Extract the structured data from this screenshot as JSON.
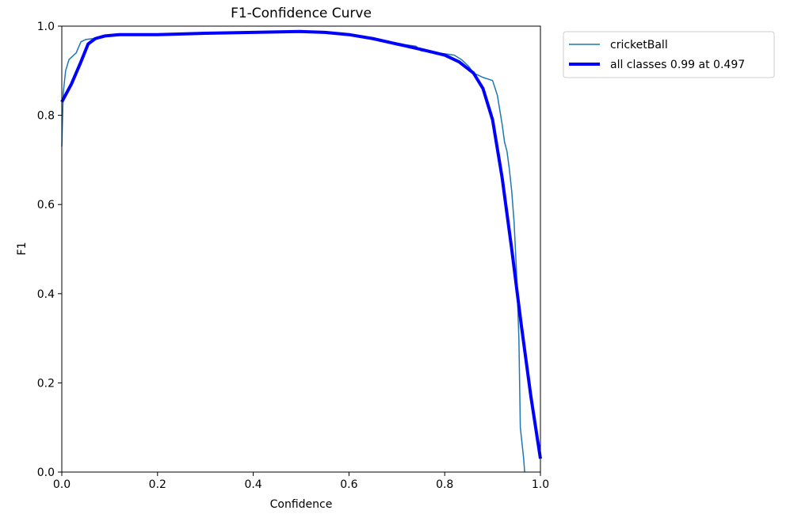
{
  "chart_data": {
    "type": "line",
    "title": "F1-Confidence Curve",
    "xlabel": "Confidence",
    "ylabel": "F1",
    "xlim": [
      0.0,
      1.0
    ],
    "ylim": [
      0.0,
      1.0
    ],
    "x_ticks": [
      "0.0",
      "0.2",
      "0.4",
      "0.6",
      "0.8",
      "1.0"
    ],
    "y_ticks": [
      "0.0",
      "0.2",
      "0.4",
      "0.6",
      "0.8",
      "1.0"
    ],
    "grid": false,
    "legend_position": "outside-top-right",
    "series": [
      {
        "name": "cricketBall",
        "color": "#1f77b4",
        "points": [
          [
            0.0,
            0.73
          ],
          [
            0.003,
            0.85
          ],
          [
            0.008,
            0.9
          ],
          [
            0.015,
            0.925
          ],
          [
            0.025,
            0.935
          ],
          [
            0.03,
            0.94
          ],
          [
            0.04,
            0.965
          ],
          [
            0.05,
            0.97
          ],
          [
            0.065,
            0.972
          ],
          [
            0.08,
            0.977
          ],
          [
            0.1,
            0.98
          ],
          [
            0.15,
            0.981
          ],
          [
            0.2,
            0.981
          ],
          [
            0.3,
            0.984
          ],
          [
            0.4,
            0.986
          ],
          [
            0.5,
            0.988
          ],
          [
            0.55,
            0.986
          ],
          [
            0.6,
            0.981
          ],
          [
            0.65,
            0.972
          ],
          [
            0.7,
            0.962
          ],
          [
            0.72,
            0.958
          ],
          [
            0.74,
            0.955
          ],
          [
            0.75,
            0.945
          ],
          [
            0.78,
            0.94
          ],
          [
            0.8,
            0.938
          ],
          [
            0.82,
            0.935
          ],
          [
            0.835,
            0.925
          ],
          [
            0.85,
            0.91
          ],
          [
            0.86,
            0.895
          ],
          [
            0.87,
            0.89
          ],
          [
            0.88,
            0.885
          ],
          [
            0.9,
            0.878
          ],
          [
            0.91,
            0.845
          ],
          [
            0.92,
            0.78
          ],
          [
            0.925,
            0.74
          ],
          [
            0.93,
            0.72
          ],
          [
            0.935,
            0.68
          ],
          [
            0.94,
            0.63
          ],
          [
            0.945,
            0.56
          ],
          [
            0.95,
            0.45
          ],
          [
            0.955,
            0.3
          ],
          [
            0.958,
            0.1
          ],
          [
            0.962,
            0.06
          ],
          [
            0.965,
            0.03
          ],
          [
            0.967,
            0.0
          ]
        ]
      },
      {
        "name": "all classes 0.99 at 0.497",
        "color": "#0000ff",
        "points": [
          [
            0.0,
            0.83
          ],
          [
            0.02,
            0.87
          ],
          [
            0.04,
            0.92
          ],
          [
            0.055,
            0.96
          ],
          [
            0.07,
            0.972
          ],
          [
            0.09,
            0.978
          ],
          [
            0.12,
            0.981
          ],
          [
            0.15,
            0.981
          ],
          [
            0.2,
            0.981
          ],
          [
            0.3,
            0.984
          ],
          [
            0.4,
            0.986
          ],
          [
            0.497,
            0.988
          ],
          [
            0.55,
            0.986
          ],
          [
            0.6,
            0.981
          ],
          [
            0.65,
            0.972
          ],
          [
            0.7,
            0.96
          ],
          [
            0.75,
            0.948
          ],
          [
            0.8,
            0.935
          ],
          [
            0.83,
            0.92
          ],
          [
            0.86,
            0.895
          ],
          [
            0.88,
            0.86
          ],
          [
            0.9,
            0.79
          ],
          [
            0.92,
            0.66
          ],
          [
            0.94,
            0.5
          ],
          [
            0.96,
            0.33
          ],
          [
            0.98,
            0.17
          ],
          [
            1.0,
            0.03
          ]
        ]
      }
    ]
  }
}
